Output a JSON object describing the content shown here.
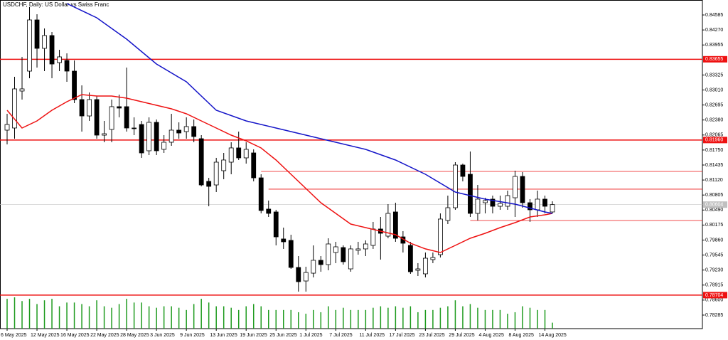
{
  "chart_data": {
    "type": "candlestick",
    "title": "USDCHF, Daily:  US Dollar vs Swiss Franc",
    "categories": [
      "6 May 2025",
      null,
      null,
      null,
      "12 May 2025",
      null,
      null,
      null,
      "16 May 2025",
      null,
      null,
      null,
      "22 May 2025",
      null,
      null,
      null,
      "28 May 2025",
      null,
      null,
      null,
      "3 Jun 2025",
      null,
      null,
      null,
      "9 Jun 2025",
      null,
      null,
      null,
      "13 Jun 2025",
      null,
      null,
      null,
      "19 Jun 2025",
      null,
      null,
      null,
      "25 Jun 2025",
      null,
      null,
      null,
      "1 Jul 2025",
      null,
      null,
      null,
      "7 Jul 2025",
      null,
      null,
      null,
      "11 Jul 2025",
      null,
      null,
      null,
      "17 Jul 2025",
      null,
      null,
      null,
      "23 Jul 2025",
      null,
      null,
      null,
      "29 Jul 2025",
      null,
      null,
      null,
      "4 Aug 2025",
      null,
      null,
      null,
      "8 Aug 2025",
      null,
      null,
      null,
      "14 Aug 2025",
      null
    ],
    "open": [
      0.82167,
      0.82212,
      0.82988,
      0.83406,
      0.84481,
      0.83884,
      0.84153,
      0.83585,
      0.8363,
      0.83406,
      0.82809,
      0.82465,
      0.82809,
      0.82062,
      0.82182,
      0.8266,
      0.8266,
      0.82212,
      0.82286,
      0.81734,
      0.82331,
      0.81764,
      0.81913,
      0.82167,
      0.82137,
      0.82242,
      0.81988,
      0.81092,
      0.81017,
      0.81316,
      0.81495,
      0.81794,
      0.81585,
      0.81689,
      0.81166,
      0.8051,
      0.8045,
      0.79883,
      0.79853,
      0.79285,
      0.79001,
      0.79165,
      0.79435,
      0.79345,
      0.79599,
      0.79703,
      0.79255,
      0.79644,
      0.79674,
      0.79748,
      0.80092,
      0.79942,
      0.8045,
      0.79927,
      0.79748,
      0.79225,
      0.79151,
      0.7945,
      0.79554,
      0.80271,
      0.80539,
      0.81435,
      0.81241,
      0.8042,
      0.80644,
      0.80719,
      0.80569,
      0.80569,
      0.80748,
      0.81196,
      0.80644,
      0.80495,
      0.80719,
      0.8045
    ],
    "high": [
      0.8251,
      0.83287,
      0.83705,
      0.8475,
      0.846,
      0.84302,
      0.84227,
      0.83854,
      0.83779,
      0.8363,
      0.83107,
      0.82958,
      0.82883,
      0.82361,
      0.82809,
      0.82913,
      0.83481,
      0.82436,
      0.82361,
      0.82436,
      0.82391,
      0.82062,
      0.8251,
      0.82331,
      0.82436,
      0.82391,
      0.82062,
      0.81166,
      0.81585,
      0.81689,
      0.81913,
      0.82137,
      0.81913,
      0.81764,
      0.81241,
      0.80689,
      0.80495,
      0.80121,
      0.79972,
      0.79524,
      0.793,
      0.79748,
      0.79524,
      0.79897,
      0.79823,
      0.79748,
      0.79748,
      0.79823,
      0.79853,
      0.80241,
      0.80345,
      0.80614,
      0.80644,
      0.80047,
      0.79823,
      0.79375,
      0.79599,
      0.79599,
      0.8042,
      0.80793,
      0.81495,
      0.81465,
      0.81719,
      0.81017,
      0.80748,
      0.80793,
      0.80793,
      0.80898,
      0.81316,
      0.81286,
      0.80719,
      0.80898,
      0.80793,
      0.80674
    ],
    "low": [
      0.81868,
      0.81988,
      0.82809,
      0.83257,
      0.83481,
      0.83406,
      0.83257,
      0.83406,
      0.83182,
      0.82734,
      0.82137,
      0.82361,
      0.81988,
      0.81913,
      0.81913,
      0.82436,
      0.82137,
      0.82062,
      0.81585,
      0.81644,
      0.81644,
      0.81689,
      0.81838,
      0.81988,
      0.81988,
      0.81913,
      0.80987,
      0.80569,
      0.80868,
      0.81137,
      0.81241,
      0.8154,
      0.81465,
      0.81092,
      0.8042,
      0.80345,
      0.79748,
      0.79674,
      0.79255,
      0.78778,
      0.78778,
      0.79076,
      0.79195,
      0.79225,
      0.79375,
      0.79345,
      0.79195,
      0.79554,
      0.79524,
      0.79674,
      0.7945,
      0.79897,
      0.79823,
      0.79599,
      0.79151,
      0.79106,
      0.79076,
      0.79375,
      0.79494,
      0.80196,
      0.80495,
      0.81092,
      0.80345,
      0.80271,
      0.8042,
      0.8042,
      0.80495,
      0.80495,
      0.80345,
      0.80539,
      0.80241,
      0.80345,
      0.8042,
      0.8042
    ],
    "close": [
      0.82286,
      0.83033,
      0.83033,
      0.84481,
      0.83884,
      0.84153,
      0.83555,
      0.83705,
      0.83406,
      0.82809,
      0.82465,
      0.82809,
      0.82062,
      0.82092,
      0.8266,
      0.8263,
      0.82212,
      0.82197,
      0.81689,
      0.82331,
      0.81734,
      0.81913,
      0.82167,
      0.82107,
      0.82242,
      0.82033,
      0.81017,
      0.80987,
      0.81495,
      0.8154,
      0.81794,
      0.81585,
      0.81764,
      0.81166,
      0.8048,
      0.8042,
      0.79927,
      0.79823,
      0.79285,
      0.78986,
      0.7918,
      0.79435,
      0.79345,
      0.79778,
      0.79718,
      0.79405,
      0.79674,
      0.79674,
      0.79778,
      0.80092,
      0.80002,
      0.8042,
      0.79897,
      0.79793,
      0.79195,
      0.79255,
      0.79479,
      0.79494,
      0.80301,
      0.80539,
      0.81435,
      0.81196,
      0.8042,
      0.80719,
      0.80689,
      0.80569,
      0.80629,
      0.80793,
      0.81196,
      0.80644,
      0.80495,
      0.80719,
      0.80569,
      0.80604
    ],
    "volume": [
      40,
      42,
      37,
      40,
      33,
      38,
      40,
      30,
      35,
      35,
      33,
      30,
      38,
      30,
      28,
      33,
      40,
      35,
      35,
      30,
      28,
      30,
      30,
      28,
      25,
      33,
      40,
      35,
      30,
      30,
      28,
      25,
      30,
      33,
      30,
      25,
      25,
      25,
      25,
      22,
      20,
      25,
      22,
      30,
      25,
      28,
      25,
      25,
      25,
      28,
      30,
      28,
      30,
      28,
      30,
      22,
      25,
      25,
      28,
      30,
      38,
      30,
      33,
      28,
      25,
      25,
      25,
      20,
      22,
      30,
      28,
      25,
      25,
      8
    ],
    "volume_color": "#1e9b1e",
    "moving_averages": [
      {
        "color": "#ee1111",
        "x": [
          0,
          2,
          4,
          6,
          8,
          10,
          12,
          14,
          16,
          18,
          20,
          22,
          24,
          26,
          28,
          30,
          32,
          34,
          36,
          38,
          40,
          42,
          44,
          46,
          48,
          50,
          52,
          54,
          56,
          58,
          60,
          62,
          64,
          66,
          68,
          70,
          72,
          73
        ],
        "values": [
          0.82585,
          0.82212,
          0.82361,
          0.82585,
          0.82764,
          0.82913,
          0.82883,
          0.82883,
          0.82839,
          0.82764,
          0.82689,
          0.82615,
          0.8251,
          0.82361,
          0.82212,
          0.82062,
          0.81943,
          0.81794,
          0.8154,
          0.81241,
          0.80943,
          0.80644,
          0.8042,
          0.80196,
          0.80121,
          0.80047,
          0.79972,
          0.79793,
          0.79674,
          0.79599,
          0.79748,
          0.79897,
          0.80002,
          0.80121,
          0.80226,
          0.80345,
          0.8039,
          0.8042
        ]
      },
      {
        "color": "#1414c8",
        "x": [
          8,
          12,
          16,
          20,
          24,
          28,
          32,
          36,
          40,
          44,
          48,
          52,
          56,
          60,
          64,
          68,
          72,
          73
        ],
        "values": [
          0.84824,
          0.84526,
          0.84078,
          0.83555,
          0.83182,
          0.82585,
          0.82361,
          0.82212,
          0.82062,
          0.81913,
          0.81764,
          0.8154,
          0.81241,
          0.80868,
          0.80719,
          0.80614,
          0.8045,
          0.8042
        ]
      }
    ],
    "levels": [
      {
        "value": 0.83655,
        "color": "#ee1111"
      },
      {
        "value": 0.8196,
        "label": "0.81960",
        "color": "#ee1111"
      },
      {
        "value": 0.78704,
        "color": "#ee1111"
      }
    ],
    "segments": [
      {
        "value": 0.81301,
        "start": 34,
        "color": "#ee1111"
      },
      {
        "value": 0.80928,
        "start": 35,
        "color": "#ee1111"
      },
      {
        "value": 0.80271,
        "start": 62,
        "color": "#ee1111"
      }
    ],
    "last_price": 0.80604,
    "ylim": [
      0.78001,
      0.84899
    ],
    "yticks": [
      0.84585,
      {
        "value": 0.8427,
        "label": "0.84270"
      },
      0.83955,
      0.83325,
      {
        "value": 0.8301,
        "label": "0.83010"
      },
      0.82695,
      {
        "value": 0.8238,
        "label": "0.82380"
      },
      0.82065,
      {
        "value": 0.8175,
        "label": "0.81750"
      },
      0.81435,
      {
        "value": 0.8112,
        "label": "0.81120"
      },
      0.80805,
      {
        "value": 0.8049,
        "label": "0.80490"
      },
      0.80175,
      {
        "value": 0.7986,
        "label": "0.79860"
      },
      0.79545,
      {
        "value": 0.7923,
        "label": "0.79230"
      },
      0.78915,
      {
        "value": 0.786,
        "label": "0.78600"
      },
      0.78285
    ]
  }
}
